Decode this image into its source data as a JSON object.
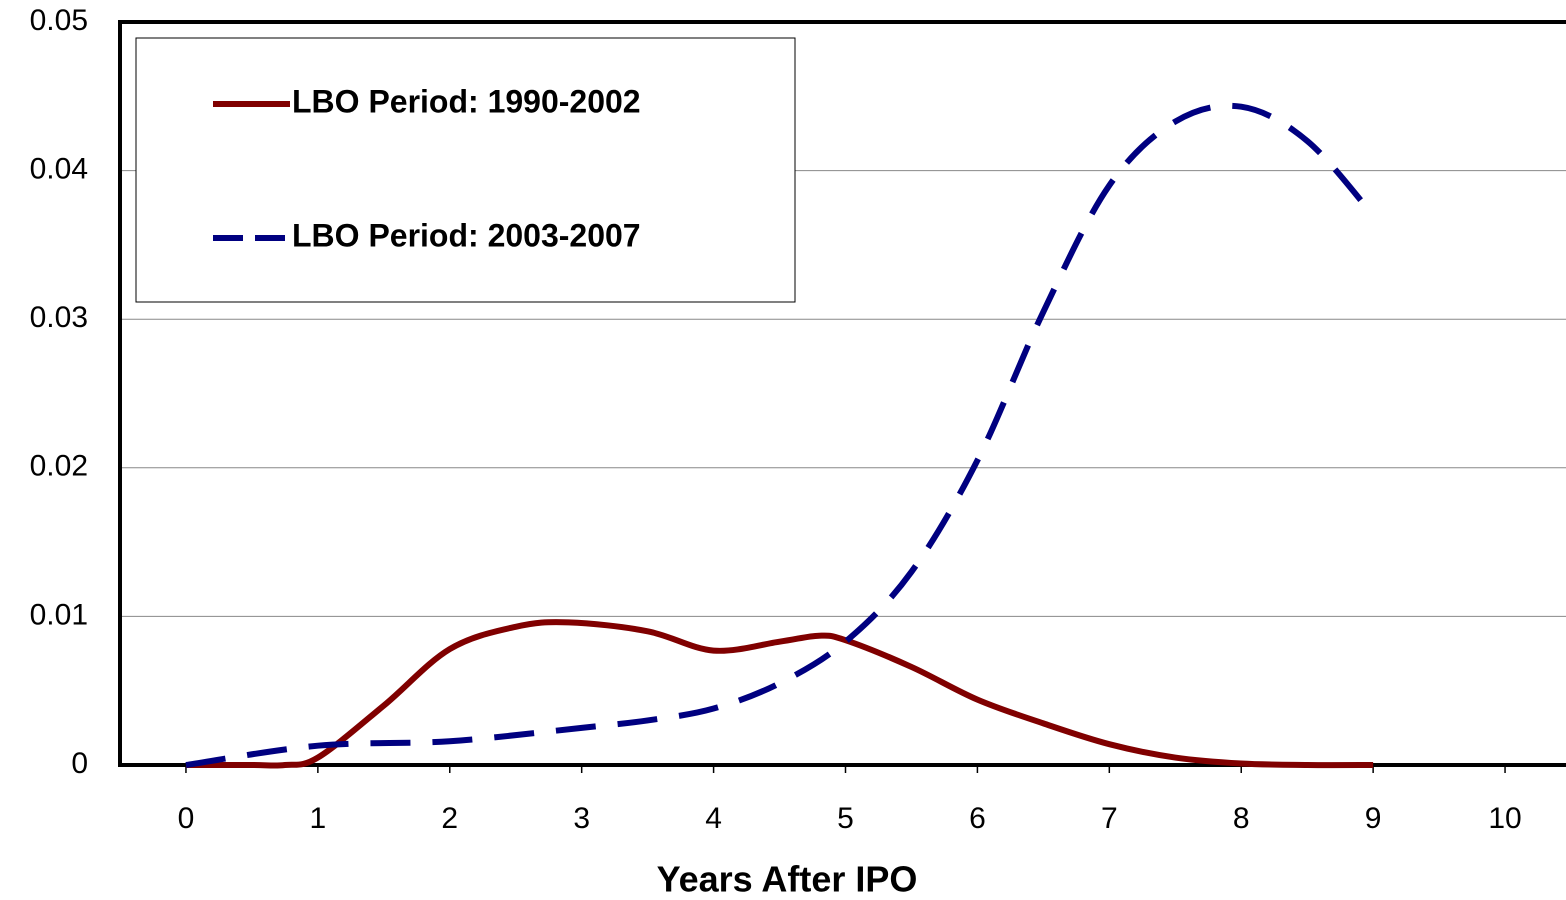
{
  "chart_data": {
    "type": "line",
    "x_label": "Years After IPO",
    "xlim": [
      -0.5,
      10.5
    ],
    "xticks": [
      0,
      1,
      2,
      3,
      4,
      5,
      6,
      7,
      8,
      9,
      10
    ],
    "ylim": [
      0,
      0.05
    ],
    "yticks": [
      0,
      0.01,
      0.02,
      0.03,
      0.04,
      0.05
    ],
    "grid": true,
    "legend": "upper left",
    "series": [
      {
        "name": "LBO Period: 1990-2002",
        "color": "#800000",
        "dash": false,
        "x": [
          0,
          0.5,
          0.75,
          1,
          1.5,
          2,
          2.5,
          2.9,
          3.5,
          4,
          4.5,
          4.8,
          5,
          5.5,
          6,
          6.5,
          7,
          7.5,
          8,
          8.5,
          9
        ],
        "values": [
          0,
          0,
          0,
          0.0005,
          0.004,
          0.0078,
          0.0093,
          0.0096,
          0.009,
          0.0077,
          0.0083,
          0.0087,
          0.0084,
          0.0066,
          0.0044,
          0.0028,
          0.0014,
          0.0005,
          0.0001,
          0,
          0
        ]
      },
      {
        "name": "LBO Period: 2003-2007",
        "color": "#000080",
        "dash": true,
        "x": [
          0,
          1,
          2,
          3,
          3.5,
          4,
          4.5,
          5,
          5.5,
          6,
          6.5,
          7,
          7.5,
          8,
          8.5,
          9
        ],
        "values": [
          0,
          0.0013,
          0.0016,
          0.0025,
          0.003,
          0.0038,
          0.0055,
          0.0083,
          0.013,
          0.0205,
          0.0305,
          0.039,
          0.0433,
          0.0443,
          0.042,
          0.037
        ]
      }
    ]
  }
}
